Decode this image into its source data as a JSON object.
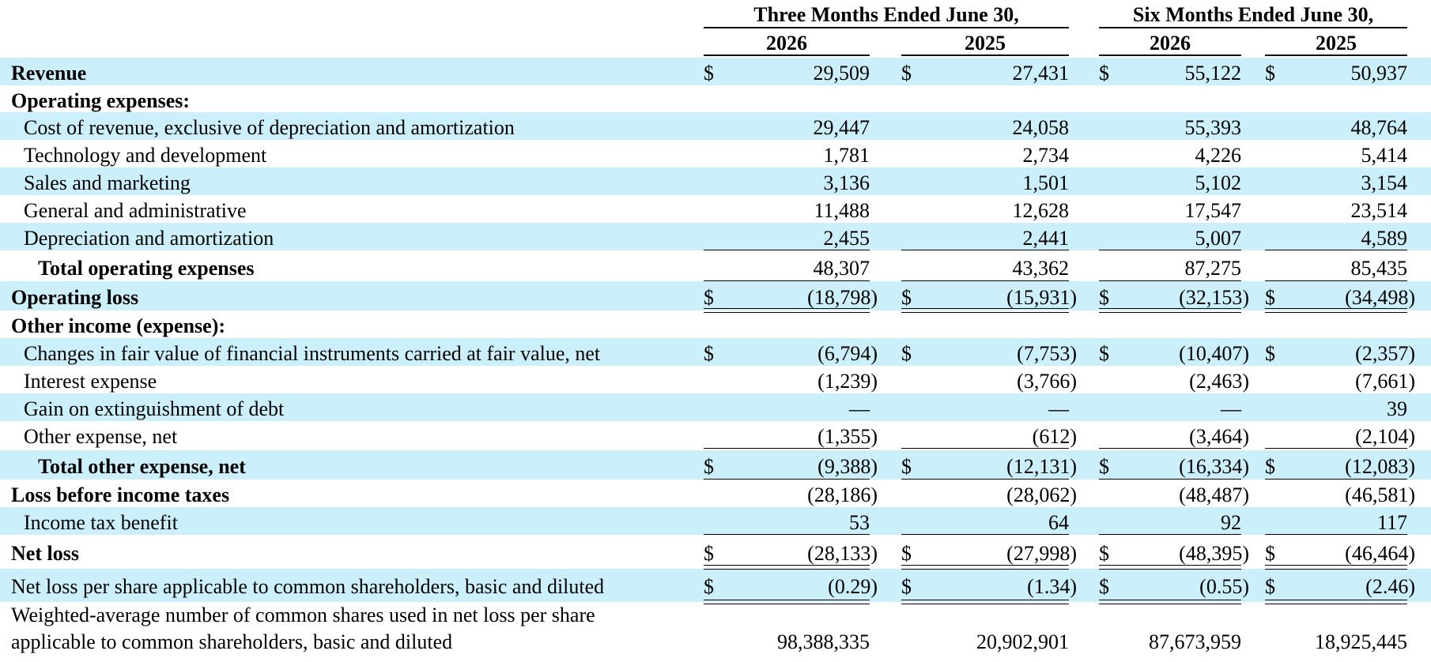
{
  "header": {
    "group_three_months": "Three Months Ended June 30,",
    "group_six_months": "Six Months Ended June 30,",
    "years": [
      "2026",
      "2025",
      "2026",
      "2025"
    ]
  },
  "rows": [
    {
      "label": "Revenue",
      "style": "bold",
      "dollar": true,
      "values": [
        "29,509",
        "27,431",
        "55,122",
        "50,937"
      ]
    },
    {
      "label": "Operating expenses:",
      "style": "bold",
      "dollar": false,
      "values": [
        "",
        "",
        "",
        ""
      ]
    },
    {
      "label": "Cost of revenue, exclusive of depreciation and amortization",
      "style": "ind1",
      "dollar": false,
      "values": [
        "29,447",
        "24,058",
        "55,393",
        "48,764"
      ]
    },
    {
      "label": "Technology and development",
      "style": "ind1",
      "dollar": false,
      "values": [
        "1,781",
        "2,734",
        "4,226",
        "5,414"
      ]
    },
    {
      "label": "Sales and marketing",
      "style": "ind1",
      "dollar": false,
      "values": [
        "3,136",
        "1,501",
        "5,102",
        "3,154"
      ]
    },
    {
      "label": "General and administrative",
      "style": "ind1",
      "dollar": false,
      "values": [
        "11,488",
        "12,628",
        "17,547",
        "23,514"
      ]
    },
    {
      "label": "Depreciation and amortization",
      "style": "ind1",
      "dollar": false,
      "values": [
        "2,455",
        "2,441",
        "5,007",
        "4,589"
      ]
    },
    {
      "label": "Total operating expenses",
      "style": "ind2",
      "dollar": false,
      "values": [
        "48,307",
        "43,362",
        "87,275",
        "85,435"
      ]
    },
    {
      "label": "Operating loss",
      "style": "bold",
      "dollar": true,
      "values": [
        "(18,798)",
        "(15,931)",
        "(32,153)",
        "(34,498)"
      ]
    },
    {
      "label": "Other income (expense):",
      "style": "bold",
      "dollar": false,
      "values": [
        "",
        "",
        "",
        ""
      ]
    },
    {
      "label": "Changes in fair value of financial instruments carried at fair value, net",
      "style": "ind1",
      "dollar": true,
      "values": [
        "(6,794)",
        "(7,753)",
        "(10,407)",
        "(2,357)"
      ]
    },
    {
      "label": "Interest expense",
      "style": "ind1",
      "dollar": false,
      "values": [
        "(1,239)",
        "(3,766)",
        "(2,463)",
        "(7,661)"
      ]
    },
    {
      "label": "Gain on extinguishment of debt",
      "style": "ind1",
      "dollar": false,
      "values": [
        "—",
        "—",
        "—",
        "39"
      ]
    },
    {
      "label": "Other expense, net",
      "style": "ind1",
      "dollar": false,
      "values": [
        "(1,355)",
        "(612)",
        "(3,464)",
        "(2,104)"
      ]
    },
    {
      "label": "Total other expense, net",
      "style": "ind2",
      "dollar": true,
      "values": [
        "(9,388)",
        "(12,131)",
        "(16,334)",
        "(12,083)"
      ]
    },
    {
      "label": "Loss before income taxes",
      "style": "bold",
      "dollar": false,
      "values": [
        "(28,186)",
        "(28,062)",
        "(48,487)",
        "(46,581)"
      ]
    },
    {
      "label": "Income tax benefit",
      "style": "ind1",
      "dollar": false,
      "values": [
        "53",
        "64",
        "92",
        "117"
      ]
    },
    {
      "label": "Net loss",
      "style": "bold",
      "dollar": true,
      "values": [
        "(28,133)",
        "(27,998)",
        "(48,395)",
        "(46,464)"
      ]
    },
    {
      "label": "Net loss per share applicable to common shareholders, basic and diluted",
      "style": "plain",
      "dollar": true,
      "values": [
        "(0.29)",
        "(1.34)",
        "(0.55)",
        "(2.46)"
      ]
    },
    {
      "label": "Weighted-average number of common shares used in net loss per share",
      "label2": "applicable to common shareholders, basic and diluted",
      "style": "plain",
      "dollar": false,
      "values": [
        "98,388,335",
        "20,902,901",
        "87,673,959",
        "18,925,445"
      ]
    }
  ],
  "dollar_sign": "$",
  "colors": {
    "shade": "#ccf0fb"
  }
}
